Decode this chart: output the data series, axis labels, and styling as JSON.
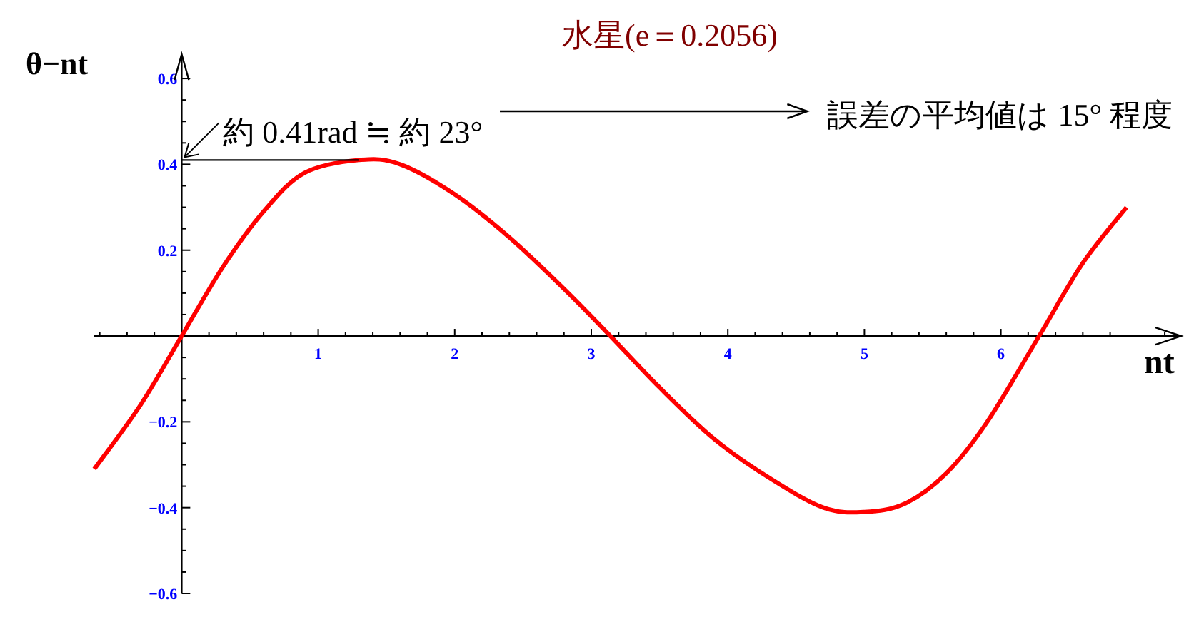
{
  "chart_data": {
    "type": "line",
    "title": "水星(e＝0.2056)",
    "xlabel": "nt",
    "ylabel": "θ−nt",
    "annotations": [
      {
        "text": "約 0.41rad ≒ 約 23°",
        "x": 0,
        "y": 0.41
      },
      "誤差の平均値は 15° 程度"
    ],
    "xlim": [
      -0.64,
      7.32
    ],
    "ylim": [
      -0.6,
      0.65
    ],
    "xticks": [
      1,
      2,
      3,
      4,
      5,
      6,
      {
        "value": -0.6,
        "label": null
      },
      {
        "value": -0.4,
        "label": null
      },
      {
        "value": -0.2,
        "label": null
      },
      {
        "value": 0.2,
        "label": null
      },
      {
        "value": 0.4,
        "label": null
      },
      {
        "value": 0.6,
        "label": null
      },
      {
        "value": 0.8,
        "label": null
      },
      {
        "value": 1.2,
        "label": null
      },
      {
        "value": 1.4,
        "label": null
      },
      {
        "value": 1.6,
        "label": null
      },
      {
        "value": 1.8,
        "label": null
      },
      {
        "value": 2.2,
        "label": null
      },
      {
        "value": 2.4,
        "label": null
      },
      {
        "value": 2.6,
        "label": null
      },
      {
        "value": 2.8,
        "label": null
      },
      {
        "value": 3.2,
        "label": null
      },
      {
        "value": 3.4,
        "label": null
      },
      {
        "value": 3.6,
        "label": null
      },
      {
        "value": 3.8,
        "label": null
      },
      {
        "value": 4.2,
        "label": null
      },
      {
        "value": 4.4,
        "label": null
      },
      {
        "value": 4.6,
        "label": null
      },
      {
        "value": 4.8,
        "label": null
      },
      {
        "value": 5.2,
        "label": null
      },
      {
        "value": 5.4,
        "label": null
      },
      {
        "value": 5.6,
        "label": null
      },
      {
        "value": 5.8,
        "label": null
      },
      {
        "value": 6.2,
        "label": null
      },
      {
        "value": 6.4,
        "label": null
      },
      {
        "value": 6.6,
        "label": null
      },
      {
        "value": 6.8,
        "label": null
      },
      {
        "value": 7.2,
        "label": null
      }
    ],
    "yticks": [
      0.6,
      0.4,
      0.2,
      {
        "value": -0.2,
        "label": "−0.2"
      },
      {
        "value": -0.4,
        "label": "−0.4"
      },
      {
        "value": -0.6,
        "label": "−0.6"
      },
      {
        "value": -0.55,
        "label": null
      },
      {
        "value": -0.5,
        "label": null
      },
      {
        "value": -0.45,
        "label": null
      },
      {
        "value": -0.35,
        "label": null
      },
      {
        "value": -0.3,
        "label": null
      },
      {
        "value": -0.25,
        "label": null
      },
      {
        "value": -0.15,
        "label": null
      },
      {
        "value": -0.1,
        "label": null
      },
      {
        "value": -0.05,
        "label": null
      },
      {
        "value": 0.05,
        "label": null
      },
      {
        "value": 0.1,
        "label": null
      },
      {
        "value": 0.15,
        "label": null
      },
      {
        "value": 0.25,
        "label": null
      },
      {
        "value": 0.3,
        "label": null
      },
      {
        "value": 0.35,
        "label": null
      },
      {
        "value": 0.45,
        "label": null
      },
      {
        "value": 0.5,
        "label": null
      },
      {
        "value": 0.55,
        "label": null
      }
    ],
    "series": [
      {
        "color": "#ff0000",
        "x": [
          -0.64,
          -0.3,
          0,
          0.3,
          0.6,
          0.9,
          1.3,
          1.6,
          2.0,
          2.4,
          2.8,
          3.14,
          3.5,
          3.9,
          4.3,
          4.7,
          5.0,
          5.3,
          5.6,
          5.9,
          6.28,
          6.6,
          6.92
        ],
        "values": [
          -0.31,
          -0.16,
          0,
          0.16,
          0.29,
          0.38,
          0.41,
          0.4,
          0.33,
          0.23,
          0.11,
          0,
          -0.12,
          -0.24,
          -0.33,
          -0.4,
          -0.41,
          -0.39,
          -0.32,
          -0.2,
          0,
          0.17,
          0.3
        ]
      },
      {
        "color": "#000000",
        "x": [
          0,
          1.3
        ],
        "values": [
          0.41,
          0.41
        ]
      }
    ]
  }
}
